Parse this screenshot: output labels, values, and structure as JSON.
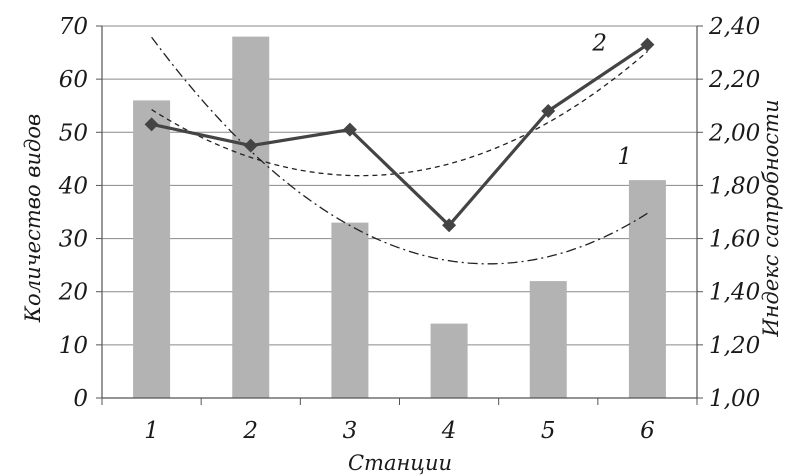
{
  "chart_data": {
    "type": "bar",
    "xlabel": "Станции",
    "categories": [
      "1",
      "2",
      "3",
      "4",
      "5",
      "6"
    ],
    "y_left": {
      "label": "Количество видов",
      "range": [
        0,
        70
      ],
      "ticks": [
        "0",
        "10",
        "20",
        "30",
        "40",
        "50",
        "60",
        "70"
      ]
    },
    "y_right": {
      "label": "Индекс сапробности",
      "range": [
        1.0,
        2.4
      ],
      "ticks": [
        "1,00",
        "1,20",
        "1,40",
        "1,60",
        "1,80",
        "2,00",
        "2,20",
        "2,40"
      ]
    },
    "grid": true,
    "series": [
      {
        "name": "1",
        "type": "bar",
        "axis": "left",
        "values": [
          56,
          68,
          33,
          14,
          22,
          41
        ],
        "color": "#b3b3b3"
      },
      {
        "name": "2",
        "type": "line",
        "axis": "right",
        "marker": "diamond",
        "values": [
          2.03,
          1.95,
          2.01,
          1.65,
          2.08,
          2.33
        ],
        "color": "#444444"
      }
    ],
    "trendlines": [
      {
        "for": "2",
        "style": "dashed",
        "kind": "polynomial"
      },
      {
        "for": "1",
        "style": "dash-dot",
        "kind": "polynomial"
      }
    ]
  }
}
